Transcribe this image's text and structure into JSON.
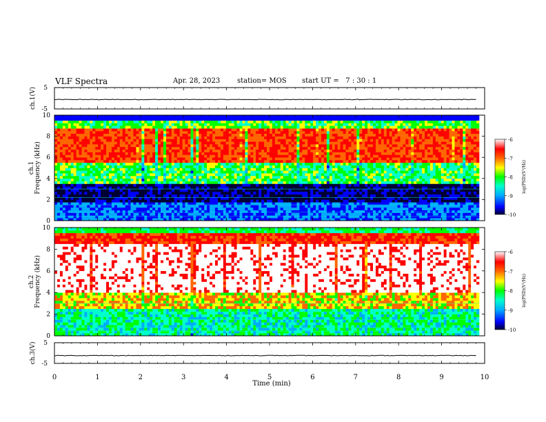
{
  "header": {
    "title": "VLF Spectra",
    "date": "Apr. 28, 2023",
    "station": "station= MOS",
    "start": "start UT =   7 : 30 : 1"
  },
  "colors": {
    "spectrogram_scale": [
      "#000033",
      "#0000ff",
      "#00aaff",
      "#00ffcc",
      "#00ff00",
      "#ffff00",
      "#ff6600",
      "#ff0000",
      "#ffffff"
    ],
    "trace": "#000000"
  },
  "chart_data": [
    {
      "type": "line",
      "ylabel": "ch.1(V)",
      "ylim": [
        -5,
        5
      ],
      "yticks": [
        "5",
        "-5"
      ],
      "series": [
        {
          "values": [
            -0.6,
            -0.6,
            -0.6,
            -0.6,
            -0.6,
            -0.6,
            -0.6,
            -0.6,
            -0.6,
            -0.6,
            -0.6
          ]
        }
      ],
      "x": [
        0,
        1,
        2,
        3,
        4,
        5,
        6,
        7,
        8,
        9,
        9.8
      ]
    },
    {
      "type": "heatmap",
      "ylabel": "ch.1\nFrequency (kHz)",
      "ylim": [
        0,
        10
      ],
      "yticks": [
        "0",
        "2",
        "4",
        "6",
        "8",
        "10"
      ],
      "colorbar": {
        "label": "log(PSD)(V²/Hz)",
        "ticks": [
          "-6",
          "-7",
          "-8",
          "-9",
          "-10"
        ],
        "range": [
          -10,
          -6
        ]
      }
    },
    {
      "type": "heatmap",
      "ylabel": "ch.2\nFrequency (kHz)",
      "ylim": [
        0,
        10
      ],
      "yticks": [
        "0",
        "2",
        "4",
        "6",
        "8",
        "10"
      ],
      "colorbar": {
        "label": "log(PSD)(V²/Hz)",
        "ticks": [
          "-6",
          "-7",
          "-8",
          "-9",
          "-10"
        ],
        "range": [
          -10,
          -6
        ]
      }
    },
    {
      "type": "line",
      "ylabel": "ch.3(V)",
      "ylim": [
        -5,
        5
      ],
      "yticks": [
        "5",
        "-5"
      ],
      "series": [
        {
          "values": [
            -1.2,
            -1.2,
            -1.2,
            -1.2,
            -1.2,
            -1.2,
            -1.2,
            -1.2,
            -1.2,
            -1.2,
            -1.2
          ]
        }
      ],
      "x": [
        0,
        1,
        2,
        3,
        4,
        5,
        6,
        7,
        8,
        9,
        9.8
      ]
    }
  ],
  "x_axis": {
    "label": "Time (min)",
    "xlim": [
      0,
      10
    ],
    "ticks": [
      "0",
      "1",
      "2",
      "3",
      "4",
      "5",
      "6",
      "7",
      "8",
      "9",
      "10"
    ]
  }
}
